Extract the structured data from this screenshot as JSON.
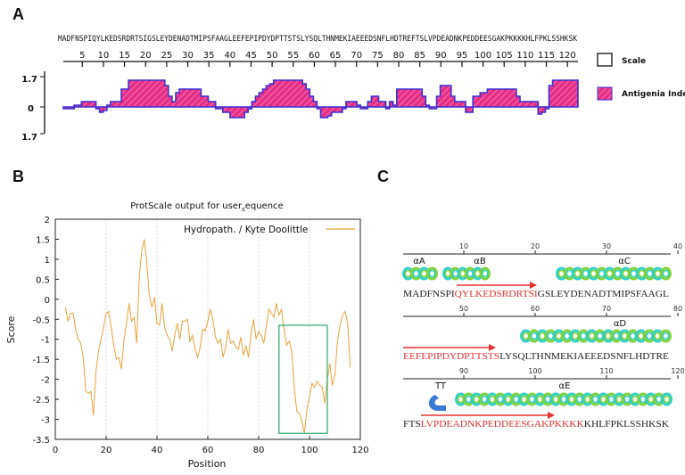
{
  "panels": {
    "a": "A",
    "b": "B",
    "c": "C"
  },
  "chart_data": [
    {
      "type": "area",
      "panel": "A",
      "sequence": "MADFNSPIQYLKEDSRDRTSIGSLEYDENADTMIPSFAAGLEEFEPIPDYDPTTSTSLYSQLTHNMEKIAEEEDSNFLHDTREFTSLVPDEADNKPEDDEESGAKPKKKKHLFPKLSSHKSK",
      "x_ticks": [
        5,
        10,
        15,
        20,
        25,
        30,
        35,
        40,
        45,
        50,
        55,
        60,
        65,
        70,
        75,
        80,
        85,
        90,
        95,
        100,
        105,
        110,
        115,
        120
      ],
      "y_tick_labels": [
        "1.7",
        "0",
        "1.7"
      ],
      "ylim": [
        -1.7,
        1.7
      ],
      "legend": [
        {
          "label": "Scale",
          "swatch": "box"
        },
        {
          "label": "Antigenia Index",
          "swatch": "hatch"
        }
      ],
      "values": [
        -0.1,
        -0.1,
        -0.1,
        0.1,
        0.1,
        0.3,
        0.3,
        0.3,
        0.3,
        -0.1,
        -0.3,
        -0.2,
        0.1,
        0.3,
        0.3,
        0.3,
        1.0,
        1.0,
        1.5,
        1.5,
        1.5,
        1.5,
        1.5,
        1.5,
        1.5,
        1.5,
        1.5,
        1.5,
        1.2,
        0.6,
        0.3,
        0.8,
        1.0,
        1.0,
        1.0,
        1.0,
        1.0,
        1.0,
        0.6,
        0.6,
        0.3,
        0.3,
        -0.1,
        -0.1,
        -0.3,
        -0.3,
        -0.6,
        -0.6,
        -0.6,
        -0.6,
        -0.3,
        -0.1,
        0.3,
        0.6,
        0.8,
        1.0,
        1.2,
        1.3,
        1.5,
        1.5,
        1.5,
        1.5,
        1.5,
        1.5,
        1.5,
        1.5,
        1.3,
        1.0,
        0.6,
        0.3,
        -0.1,
        -0.6,
        -0.6,
        -0.5,
        -0.3,
        -0.3,
        -0.3,
        -0.1,
        0.3,
        0.3,
        0.3,
        0.1,
        -0.1,
        -0.1,
        0.3,
        0.6,
        0.6,
        0.3,
        0.3,
        -0.1,
        0.3,
        0.1,
        1.0,
        1.0,
        1.0,
        1.0,
        1.0,
        1.0,
        1.0,
        0.6,
        0.1,
        -0.1,
        -0.1,
        0.6,
        1.2,
        1.2,
        1.2,
        0.6,
        0.3,
        0.3,
        0.3,
        -0.3,
        -0.3,
        0.6,
        0.6,
        0.8,
        0.8,
        1.0,
        1.0,
        1.0,
        1.0,
        1.0,
        1.0,
        1.0,
        1.0,
        0.6,
        0.3,
        0.3,
        0.3,
        0.3,
        0.3,
        -0.4,
        -0.3,
        -0.1,
        1.2,
        1.5,
        1.5,
        1.5,
        1.5,
        1.5,
        1.5,
        1.5
      ],
      "colors": {
        "fill": "#e52f86",
        "line": "#3b2fd6"
      }
    },
    {
      "type": "line",
      "panel": "B",
      "title": "ProtScale output for user sequence",
      "title_prefix": "ProtScale output for user",
      "title_sub": "s",
      "title_suffix": "equence",
      "xlabel": "Position",
      "ylabel": "Score",
      "xlim": [
        0,
        120
      ],
      "ylim": [
        -3.5,
        2
      ],
      "x_ticks": [
        0,
        20,
        40,
        60,
        80,
        100,
        120
      ],
      "y_ticks": [
        2,
        1.5,
        1,
        0.5,
        0,
        -0.5,
        -1,
        -1.5,
        -2,
        -2.5,
        -3,
        -3.5
      ],
      "legend": "Hydropath. / Kyte  Doolittle",
      "highlight_box": {
        "x_from": 88,
        "x_to": 107,
        "y_from": -3.35,
        "y_to": -0.65
      },
      "series": [
        {
          "name": "Hydropath. / Kyte Doolittle",
          "x": [
            4,
            5,
            6,
            7,
            8,
            9,
            10,
            11,
            12,
            13,
            14,
            15,
            16,
            17,
            18,
            19,
            20,
            21,
            22,
            23,
            24,
            25,
            26,
            27,
            28,
            29,
            30,
            31,
            32,
            33,
            34,
            35,
            36,
            37,
            38,
            39,
            40,
            41,
            42,
            43,
            44,
            45,
            46,
            47,
            48,
            49,
            50,
            51,
            52,
            53,
            54,
            55,
            56,
            57,
            58,
            59,
            60,
            61,
            62,
            63,
            64,
            65,
            66,
            67,
            68,
            69,
            70,
            71,
            72,
            73,
            74,
            75,
            76,
            77,
            78,
            79,
            80,
            81,
            82,
            83,
            84,
            85,
            86,
            87,
            88,
            89,
            90,
            91,
            92,
            93,
            94,
            95,
            96,
            97,
            98,
            99,
            100,
            101,
            102,
            103,
            104,
            105,
            106,
            107,
            108,
            109,
            110,
            111,
            112,
            113,
            114,
            115,
            116
          ],
          "y": [
            -0.2,
            -0.55,
            -0.35,
            -0.35,
            -0.75,
            -1.0,
            -1.1,
            -1.45,
            -2.3,
            -2.35,
            -2.3,
            -2.9,
            -1.8,
            -1.3,
            -1.0,
            -0.7,
            -0.35,
            -0.3,
            -0.7,
            -1.15,
            -1.5,
            -1.45,
            -1.75,
            -1.05,
            -0.6,
            -0.1,
            -0.55,
            -0.45,
            -1.1,
            0.55,
            1.2,
            1.5,
            0.9,
            0.1,
            -0.2,
            0.05,
            -0.6,
            -0.65,
            -0.1,
            -0.7,
            -0.9,
            -1.0,
            -1.3,
            -0.9,
            -0.6,
            -1.0,
            -0.55,
            -0.55,
            -0.5,
            -1.05,
            -0.9,
            -1.25,
            -1.45,
            -1.2,
            -0.75,
            -0.8,
            -0.55,
            -0.25,
            -0.5,
            -0.95,
            -1.1,
            -1.0,
            -1.45,
            -1.2,
            -0.75,
            -1.1,
            -1.05,
            -1.2,
            -1.25,
            -0.95,
            -1.4,
            -1.15,
            -1.45,
            -0.85,
            -0.5,
            -1.0,
            -0.8,
            -0.9,
            -1.1,
            -0.7,
            -0.25,
            -0.35,
            -0.45,
            -0.1,
            -0.4,
            -0.25,
            -0.75,
            -1.15,
            -1.05,
            -1.3,
            -2.2,
            -2.8,
            -2.85,
            -3.05,
            -3.35,
            -2.75,
            -2.45,
            -2.1,
            -2.2,
            -2.05,
            -2.15,
            -2.2,
            -2.6,
            -2.0,
            -1.6,
            -2.15,
            -1.9,
            -1.05,
            -0.65,
            -0.4,
            -0.3,
            -0.6,
            -1.7
          ]
        }
      ],
      "colors": {
        "line": "#e8a43c",
        "box": "#2aa86a",
        "grid": "#cfcfcf"
      }
    }
  ],
  "secondary": {
    "rows": [
      {
        "ticks": [
          {
            "pos": 10,
            "label": "10"
          },
          {
            "pos": 20,
            "label": "20"
          },
          {
            "pos": 30,
            "label": "30"
          },
          {
            "pos": 40,
            "label": "40"
          }
        ],
        "labels": [
          "αA",
          "αB",
          "αC"
        ],
        "seq_black1": "MADFNSPI",
        "seq_red": "QYLKEDSRDRTSI",
        "seq_black2": "GSLEYDENADTMIPSFAAGL"
      },
      {
        "ticks": [
          {
            "pos": 50,
            "label": "50"
          },
          {
            "pos": 60,
            "label": "60"
          },
          {
            "pos": 70,
            "label": "70"
          },
          {
            "pos": 80,
            "label": "80"
          }
        ],
        "labels": [
          "αD"
        ],
        "seq_black1": "",
        "seq_red": "EEFEPIPDYDPTTSTS",
        "seq_black2": "LYSQLTHNMEKIAEEEDSNFLHDTRE"
      },
      {
        "ticks": [
          {
            "pos": 90,
            "label": "90"
          },
          {
            "pos": 100,
            "label": "100"
          },
          {
            "pos": 110,
            "label": "110"
          },
          {
            "pos": 120,
            "label": "120"
          }
        ],
        "labels": [
          "TT",
          "αE"
        ],
        "seq_black1": "FTS",
        "seq_red": "LVPDEADNKPEDDEESGAKPKKKK",
        "seq_black2": "KHLFPKLSSHKSK"
      }
    ],
    "colors": {
      "helix_a": "#2fd0c8",
      "helix_b": "#7fd23a",
      "turn": "#3a78d8",
      "arrow": "#e53030",
      "red_text": "#e03030"
    }
  }
}
